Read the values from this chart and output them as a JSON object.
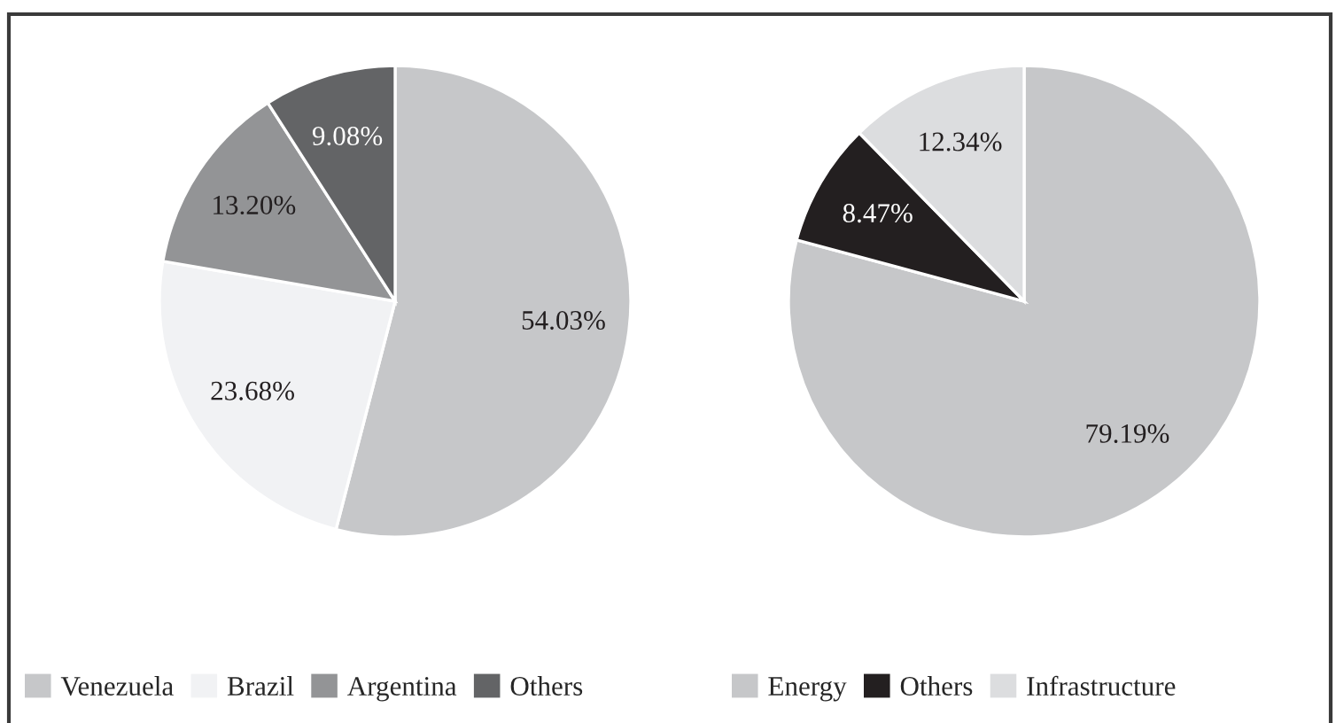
{
  "chart_data": [
    {
      "type": "pie",
      "categories": [
        "Venezuela",
        "Brazil",
        "Argentina",
        "Others"
      ],
      "values": [
        54.03,
        23.68,
        13.2,
        9.08
      ],
      "colors": [
        "#c6c7c9",
        "#f1f2f4",
        "#939496",
        "#636466"
      ],
      "value_labels": [
        "54.03%",
        "23.68%",
        "13.20%",
        "9.08%"
      ],
      "legend": "bottom"
    },
    {
      "type": "pie",
      "categories": [
        "Energy",
        "Others",
        "Infrastructure"
      ],
      "values": [
        79.19,
        8.47,
        12.34
      ],
      "colors": [
        "#c6c7c9",
        "#231f20",
        "#dcdddf"
      ],
      "value_labels": [
        "79.19%",
        "8.47%",
        "12.34%"
      ],
      "legend": "bottom"
    }
  ]
}
